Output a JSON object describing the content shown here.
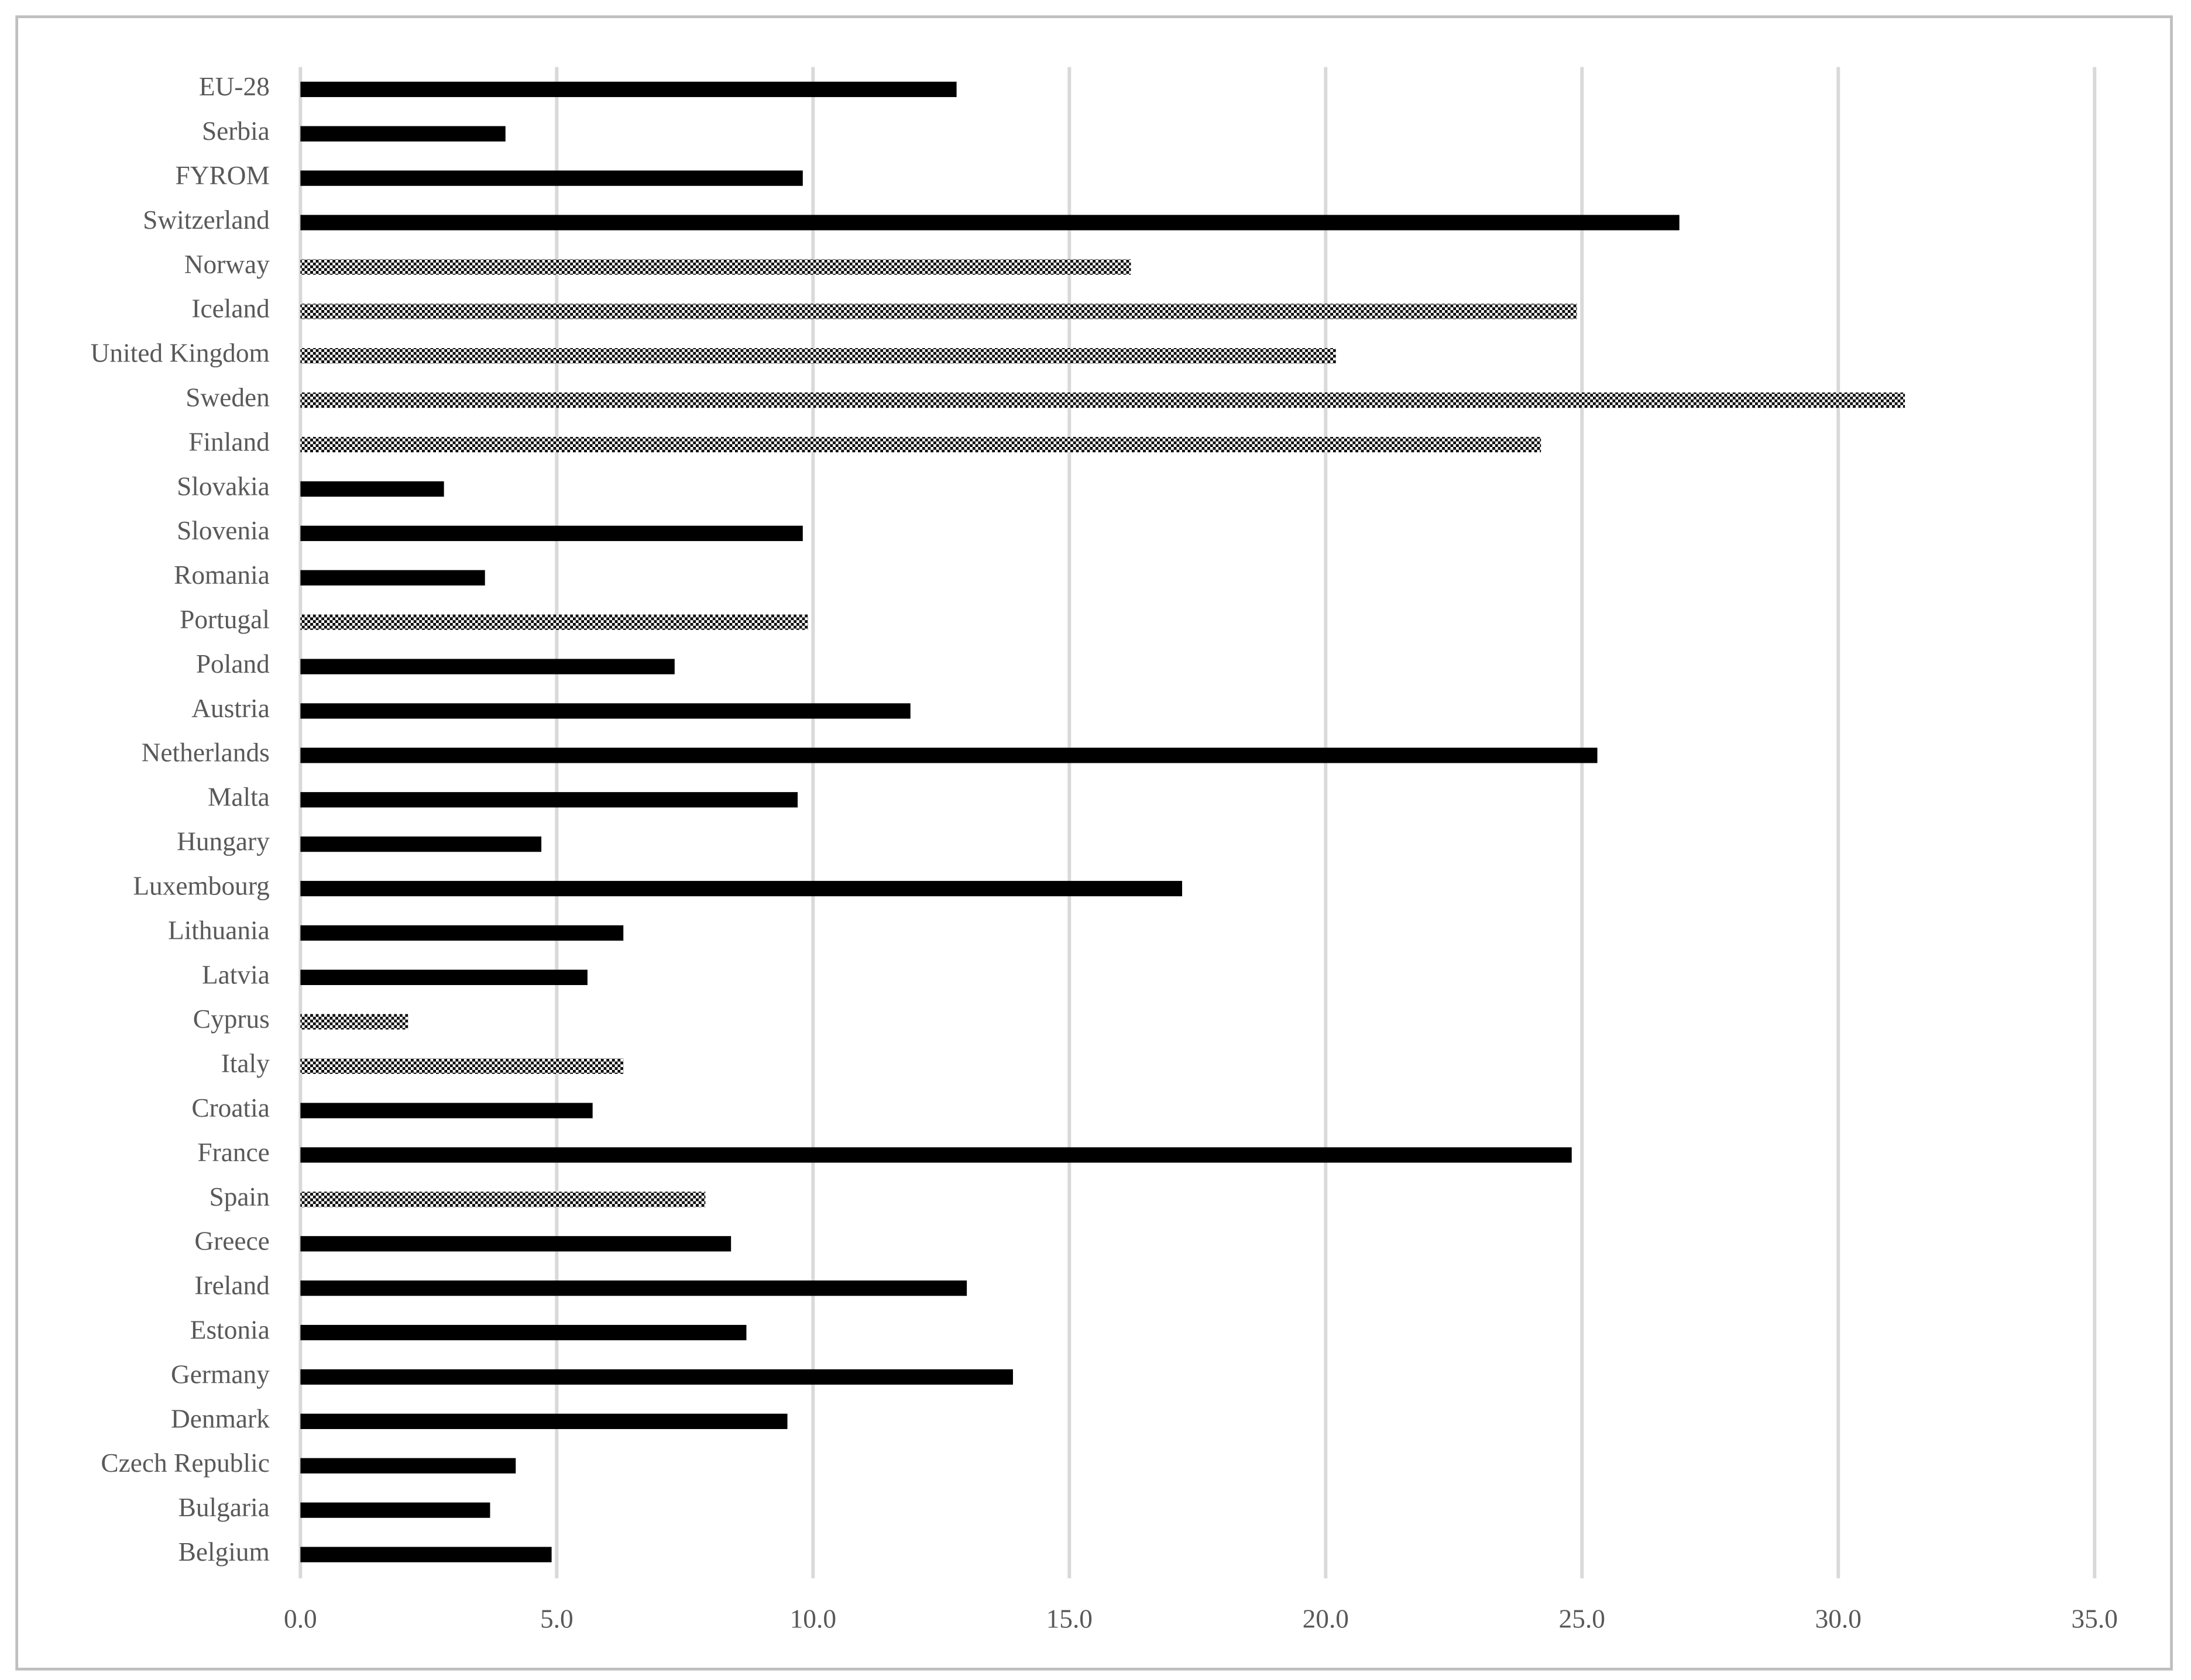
{
  "chart_data": {
    "type": "bar",
    "orientation": "horizontal",
    "categories": [
      "EU-28",
      "Serbia",
      "FYROM",
      "Switzerland",
      "Norway",
      "Iceland",
      "United Kingdom",
      "Sweden",
      "Finland",
      "Slovakia",
      "Slovenia",
      "Romania",
      "Portugal",
      "Poland",
      "Austria",
      "Netherlands",
      "Malta",
      "Hungary",
      "Luxembourg",
      "Lithuania",
      "Latvia",
      "Cyprus",
      "Italy",
      "Croatia",
      "France",
      "Spain",
      "Greece",
      "Ireland",
      "Estonia",
      "Germany",
      "Denmark",
      "Czech Republic",
      "Bulgaria",
      "Belgium"
    ],
    "values": [
      12.8,
      4.0,
      9.8,
      26.9,
      16.2,
      24.9,
      20.2,
      31.3,
      24.2,
      2.8,
      9.8,
      3.6,
      9.9,
      7.3,
      11.9,
      25.3,
      9.7,
      4.7,
      17.2,
      6.3,
      5.6,
      2.1,
      6.3,
      5.7,
      24.8,
      7.9,
      8.4,
      13.0,
      8.7,
      13.9,
      9.5,
      4.2,
      3.7,
      4.9
    ],
    "bar_fills": [
      "solid",
      "solid",
      "solid",
      "solid",
      "checkered",
      "checkered",
      "checkered",
      "checkered",
      "checkered",
      "solid",
      "solid",
      "solid",
      "checkered",
      "solid",
      "solid",
      "solid",
      "solid",
      "solid",
      "solid",
      "solid",
      "solid",
      "checkered",
      "checkered",
      "solid",
      "solid",
      "checkered",
      "solid",
      "solid",
      "solid",
      "solid",
      "solid",
      "solid",
      "solid",
      "solid"
    ],
    "color": "#000000",
    "xlim": [
      0,
      35
    ],
    "xticks": [
      {
        "value": 0,
        "label": "0.0"
      },
      {
        "value": 5,
        "label": "5.0"
      },
      {
        "value": 10,
        "label": "10.0"
      },
      {
        "value": 15,
        "label": "15.0"
      },
      {
        "value": 20,
        "label": "20.0"
      },
      {
        "value": 25,
        "label": "25.0"
      },
      {
        "value": 30,
        "label": "30.0"
      },
      {
        "value": 35,
        "label": "35.0"
      }
    ],
    "grid": true
  }
}
